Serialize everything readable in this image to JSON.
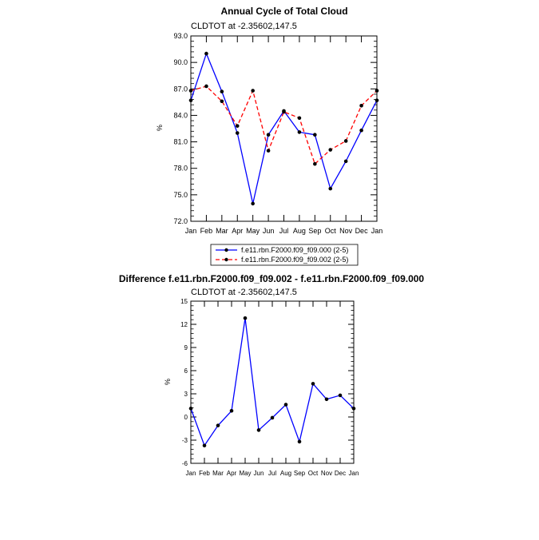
{
  "chart_data": [
    {
      "type": "line",
      "title": "Annual Cycle of Total Cloud",
      "subtitle": "CLDTOT at -2.35602,147.5",
      "xlabel": "",
      "ylabel": "%",
      "categories": [
        "Jan",
        "Feb",
        "Mar",
        "Apr",
        "May",
        "Jun",
        "Jul",
        "Aug",
        "Sep",
        "Oct",
        "Nov",
        "Dec",
        "Jan"
      ],
      "ylim": [
        72.0,
        93.0
      ],
      "yticks": [
        "72.0",
        "75.0",
        "78.0",
        "81.0",
        "84.0",
        "87.0",
        "90.0",
        "93.0"
      ],
      "grid": false,
      "legend_position": "bottom",
      "series": [
        {
          "name": "f.e11.rbn.F2000.f09_f09.000 (2-5)",
          "color": "#0000ff",
          "dash": "solid",
          "values": [
            85.7,
            91.0,
            86.7,
            82.0,
            74.0,
            81.8,
            84.5,
            82.1,
            81.8,
            75.7,
            78.8,
            82.3,
            85.7
          ]
        },
        {
          "name": "f.e11.rbn.F2000.f09_f09.002 (2-5)",
          "color": "#ff0000",
          "dash": "dashed",
          "values": [
            86.8,
            87.3,
            85.6,
            82.8,
            86.8,
            80.0,
            84.4,
            83.7,
            78.5,
            80.1,
            81.1,
            85.1,
            86.8
          ]
        }
      ]
    },
    {
      "type": "line",
      "title": "Difference f.e11.rbn.F2000.f09_f09.002 - f.e11.rbn.F2000.f09_f09.000",
      "subtitle": "CLDTOT at -2.35602,147.5",
      "xlabel": "",
      "ylabel": "%",
      "categories": [
        "Jan",
        "Feb",
        "Mar",
        "Apr",
        "May",
        "Jun",
        "Jul",
        "Aug",
        "Sep",
        "Oct",
        "Nov",
        "Dec",
        "Jan"
      ],
      "ylim": [
        -6,
        15
      ],
      "yticks": [
        "-6",
        "-3",
        "0",
        "3",
        "6",
        "9",
        "12",
        "15"
      ],
      "grid": false,
      "series": [
        {
          "color": "#0000ff",
          "dash": "solid",
          "values": [
            1.1,
            -3.7,
            -1.1,
            0.8,
            12.8,
            -1.7,
            -0.1,
            1.6,
            -3.2,
            4.3,
            2.3,
            2.8,
            1.1
          ]
        }
      ]
    }
  ]
}
